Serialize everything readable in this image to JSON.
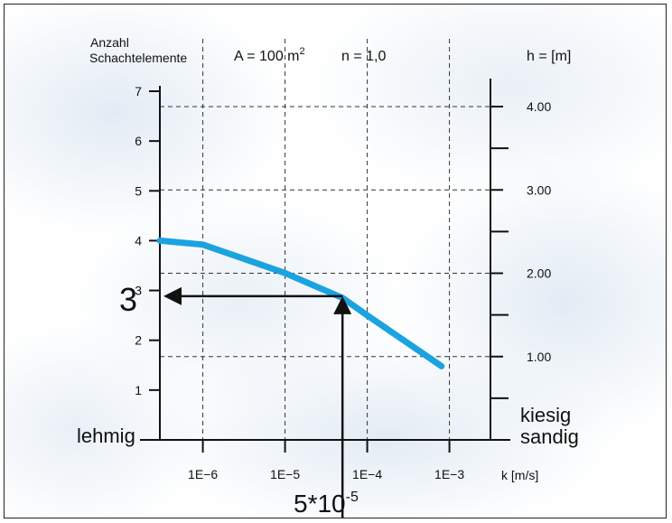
{
  "chart_data": {
    "type": "line",
    "left_axis": {
      "title_line1": "Anzahl",
      "title_line2": "Schachtelemente",
      "ticks": [
        1,
        2,
        3,
        4,
        5,
        6,
        7
      ],
      "range": [
        0,
        7
      ]
    },
    "right_axis": {
      "title": "h = [m]",
      "ticks": [
        1.0,
        2.0,
        3.0,
        4.0
      ],
      "tick_labels": [
        "1.00",
        "2.00",
        "3.00",
        "4.00"
      ],
      "range": [
        0,
        4.3
      ]
    },
    "x_axis": {
      "title": "k [m/s]",
      "scale": "log",
      "tick_values": [
        1e-06,
        1e-05,
        0.0001,
        0.001
      ],
      "tick_labels": [
        "1E−6",
        "1E−5",
        "1E−4",
        "1E−3"
      ],
      "range": [
        3e-07,
        0.004
      ]
    },
    "params": {
      "area_prefix": "A = 100 m",
      "area_sup": "2",
      "n": "n = 1,0"
    },
    "series": [
      {
        "color": "#1aa3df",
        "x": [
          3e-07,
          1e-06,
          1e-05,
          5e-05,
          0.0001,
          0.0008
        ],
        "y": [
          4.0,
          3.92,
          3.35,
          2.85,
          2.5,
          1.48
        ]
      }
    ],
    "annotation": {
      "x": 5e-05,
      "y": 2.85,
      "y_label": "3",
      "x_label_base": "5*10",
      "x_label_exp": "-5"
    },
    "soil_labels": {
      "left": "lehmig",
      "right_top": "kiesig",
      "right_bottom": "sandig"
    },
    "grid": "dashed",
    "colors": {
      "curve": "#1aa3df",
      "axis": "#111111",
      "grid": "#333333"
    }
  }
}
